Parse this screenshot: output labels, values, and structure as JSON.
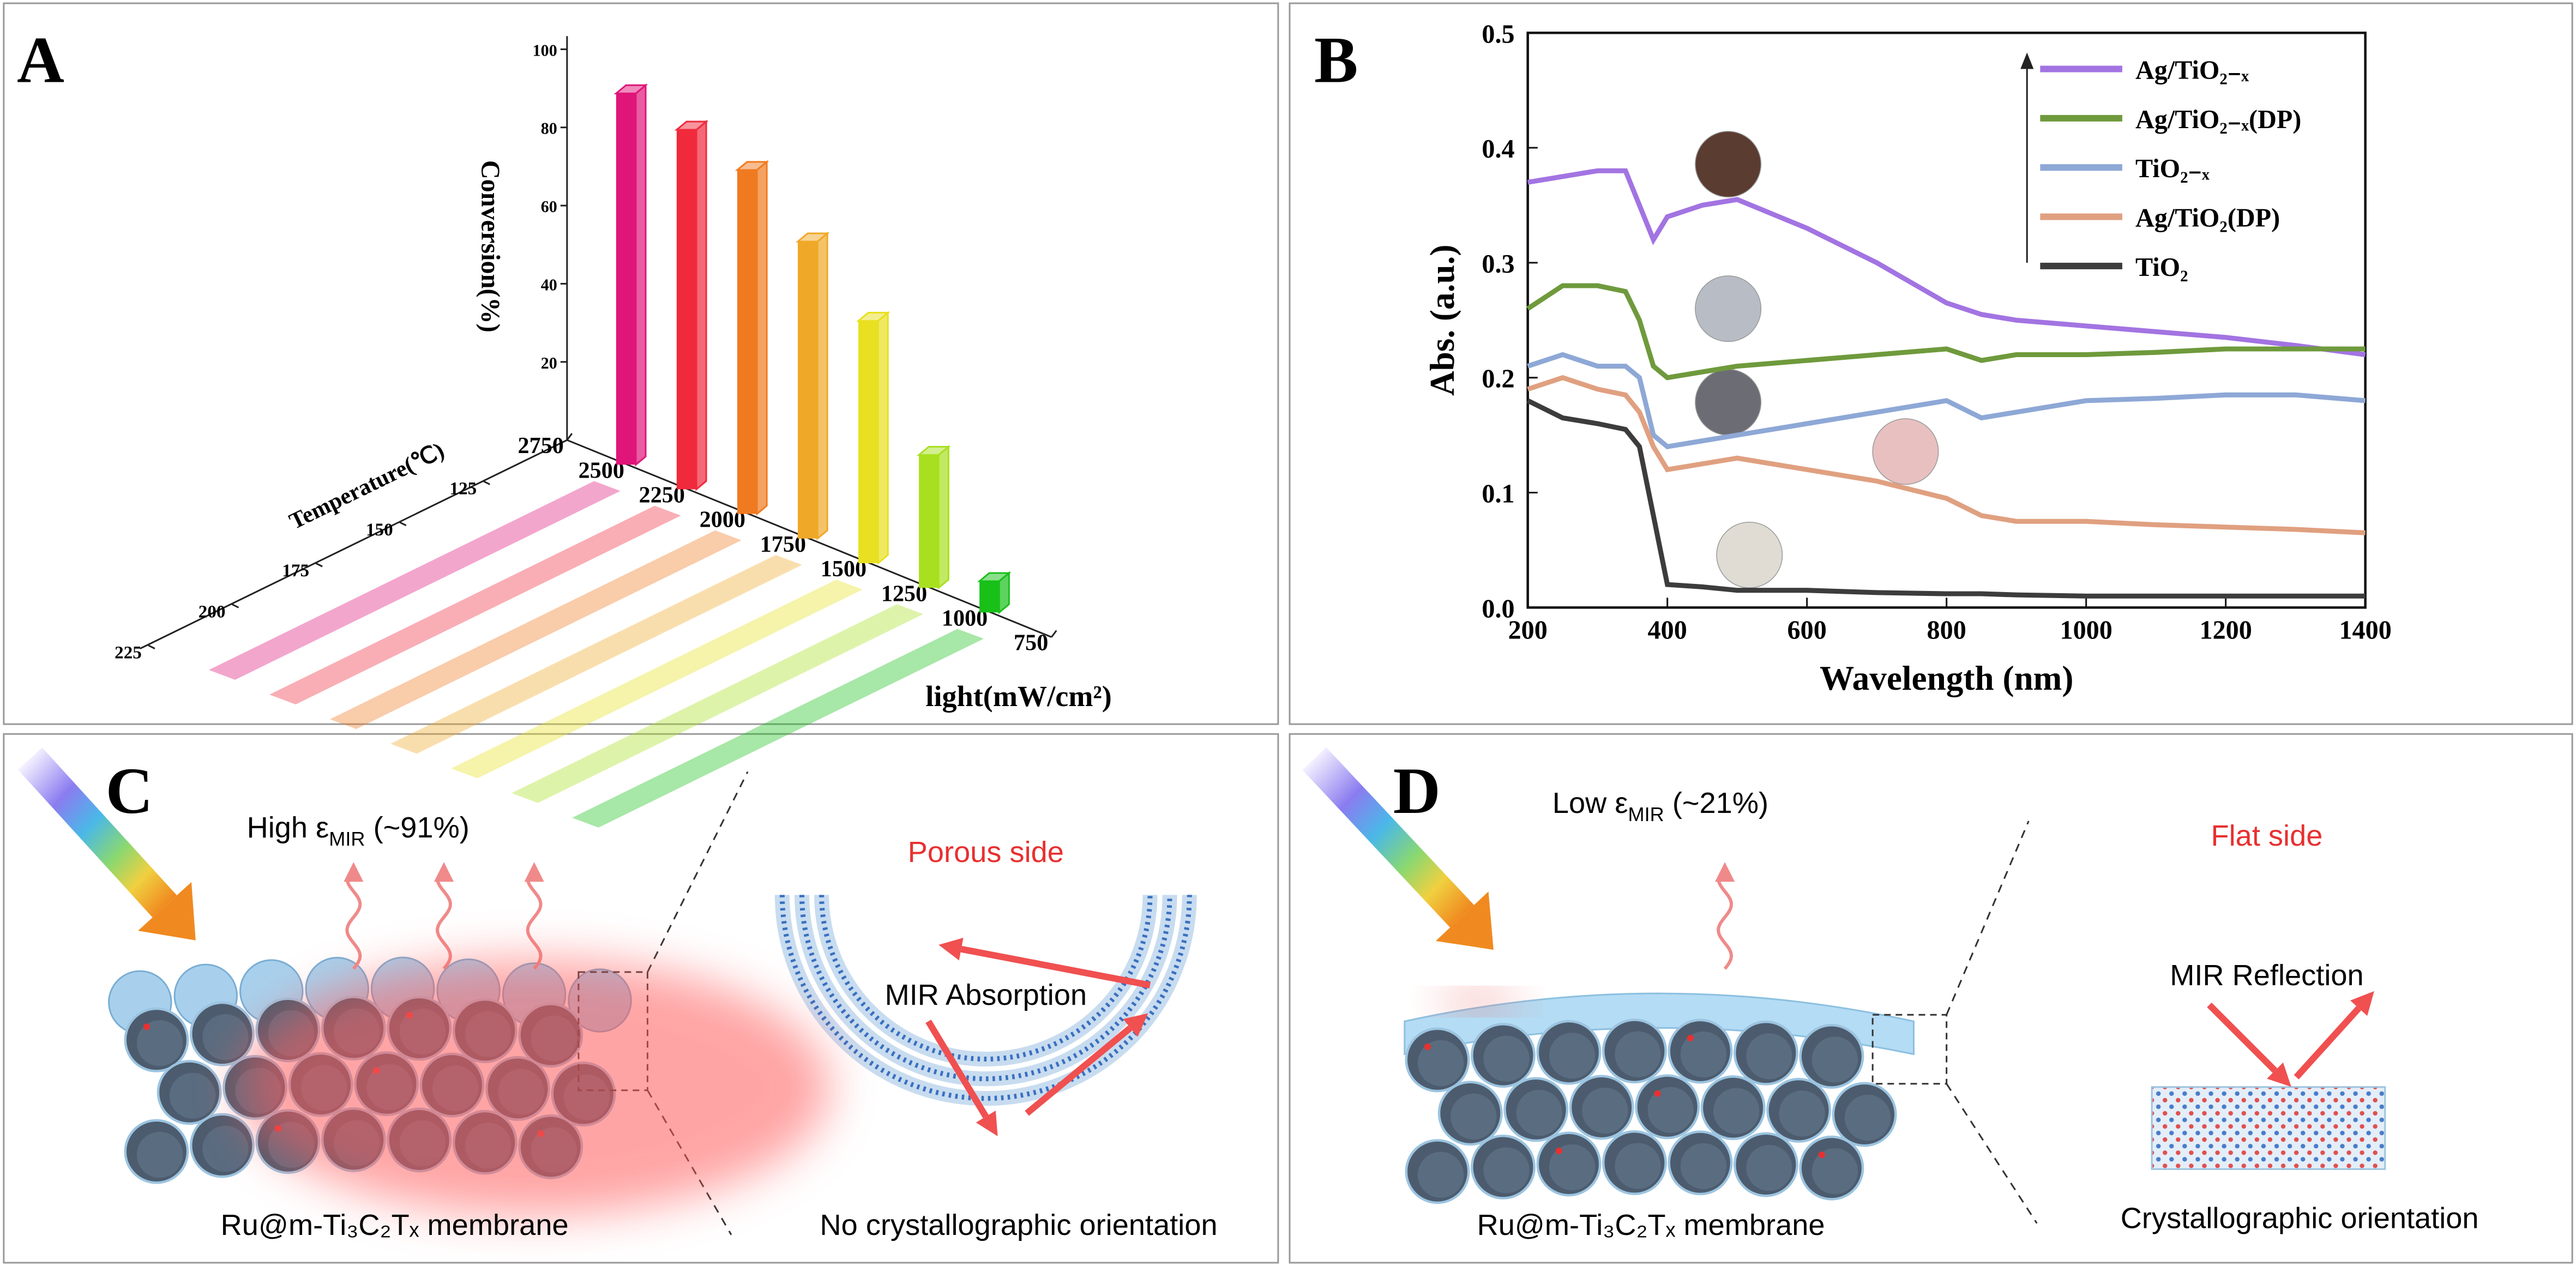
{
  "chart_data": [
    {
      "type": "bar3d",
      "panel_label": "A",
      "ylabel": "Conversion(%)",
      "xlabel": "light(mW/cm²)",
      "tlabel": "Temperature(℃)",
      "x": [
        2500,
        2250,
        2000,
        1750,
        1500,
        1250,
        1000
      ],
      "values": [
        95,
        92,
        88,
        76,
        62,
        34,
        8
      ],
      "colors": [
        "#e0157a",
        "#f02a3c",
        "#f07a20",
        "#f0a828",
        "#e8e020",
        "#a8e020",
        "#18c018"
      ],
      "ylim": [
        0,
        100
      ],
      "yticks": [
        20,
        40,
        60,
        80,
        100
      ],
      "xlim": [
        2750,
        750
      ],
      "xticks": [
        2750,
        2500,
        2250,
        2000,
        1750,
        1500,
        1250,
        1000,
        750
      ],
      "tlim": [
        100,
        225
      ],
      "tticks": [
        125,
        150,
        175,
        200,
        225
      ]
    },
    {
      "type": "line",
      "panel_label": "B",
      "xlabel": "Wavelength (nm)",
      "ylabel": "Abs. (a.u.)",
      "x": [
        200,
        250,
        300,
        340,
        360,
        380,
        400,
        450,
        500,
        600,
        700,
        800,
        850,
        900,
        1000,
        1100,
        1200,
        1300,
        1400
      ],
      "xlim": [
        200,
        1400
      ],
      "xticks": [
        200,
        400,
        600,
        800,
        1000,
        1200,
        1400
      ],
      "ylim": [
        0,
        0.5
      ],
      "yticks": [
        {
          "value": 0,
          "label": "0.0"
        },
        0.1,
        0.2,
        0.3,
        0.4,
        0.5
      ],
      "series": [
        {
          "name": "Ag/TiO₂₋ₓ",
          "color": "#a274e2",
          "values": [
            0.37,
            0.375,
            0.38,
            0.38,
            0.35,
            0.32,
            0.34,
            0.35,
            0.355,
            0.33,
            0.3,
            0.265,
            0.255,
            0.25,
            0.245,
            0.24,
            0.235,
            0.228,
            0.22
          ]
        },
        {
          "name": "Ag/TiO₂₋ₓ(DP)",
          "color": "#6f9a3c",
          "values": [
            0.26,
            0.28,
            0.28,
            0.275,
            0.25,
            0.21,
            0.2,
            0.205,
            0.21,
            0.215,
            0.22,
            0.225,
            0.215,
            0.22,
            0.22,
            0.222,
            0.225,
            0.225,
            0.225
          ]
        },
        {
          "name": "TiO₂₋ₓ",
          "color": "#8ea8d6",
          "values": [
            0.21,
            0.22,
            0.21,
            0.21,
            0.2,
            0.15,
            0.14,
            0.145,
            0.15,
            0.16,
            0.17,
            0.18,
            0.165,
            0.17,
            0.18,
            0.182,
            0.185,
            0.185,
            0.18
          ]
        },
        {
          "name": "Ag/TiO₂(DP)",
          "color": "#e0a080",
          "values": [
            0.19,
            0.2,
            0.19,
            0.185,
            0.17,
            0.14,
            0.12,
            0.125,
            0.13,
            0.12,
            0.11,
            0.095,
            0.08,
            0.075,
            0.075,
            0.072,
            0.07,
            0.068,
            0.065
          ]
        },
        {
          "name": "TiO₂",
          "color": "#3c3c3c",
          "values": [
            0.18,
            0.165,
            0.16,
            0.155,
            0.14,
            0.08,
            0.02,
            0.018,
            0.015,
            0.015,
            0.013,
            0.012,
            0.012,
            0.011,
            0.01,
            0.01,
            0.01,
            0.01,
            0.01
          ]
        }
      ]
    }
  ],
  "diagrams": [
    {
      "panel_label": "C",
      "emissivity": {
        "prefix": "High ε",
        "subscript": "MIR",
        "suffix": " (~91%)"
      },
      "side": "Porous side",
      "mechanism": "MIR Absorption",
      "membrane": "Ru@m-Ti₃C₂Tₓ membrane",
      "orientation": "No crystallographic orientation"
    },
    {
      "panel_label": "D",
      "emissivity": {
        "prefix": "Low ε",
        "subscript": "MIR",
        "suffix": " (~21%)"
      },
      "side": "Flat side",
      "mechanism": "MIR Reflection",
      "membrane": "Ru@m-Ti₃C₂Tₓ membrane",
      "orientation": "Crystallographic orientation"
    }
  ]
}
